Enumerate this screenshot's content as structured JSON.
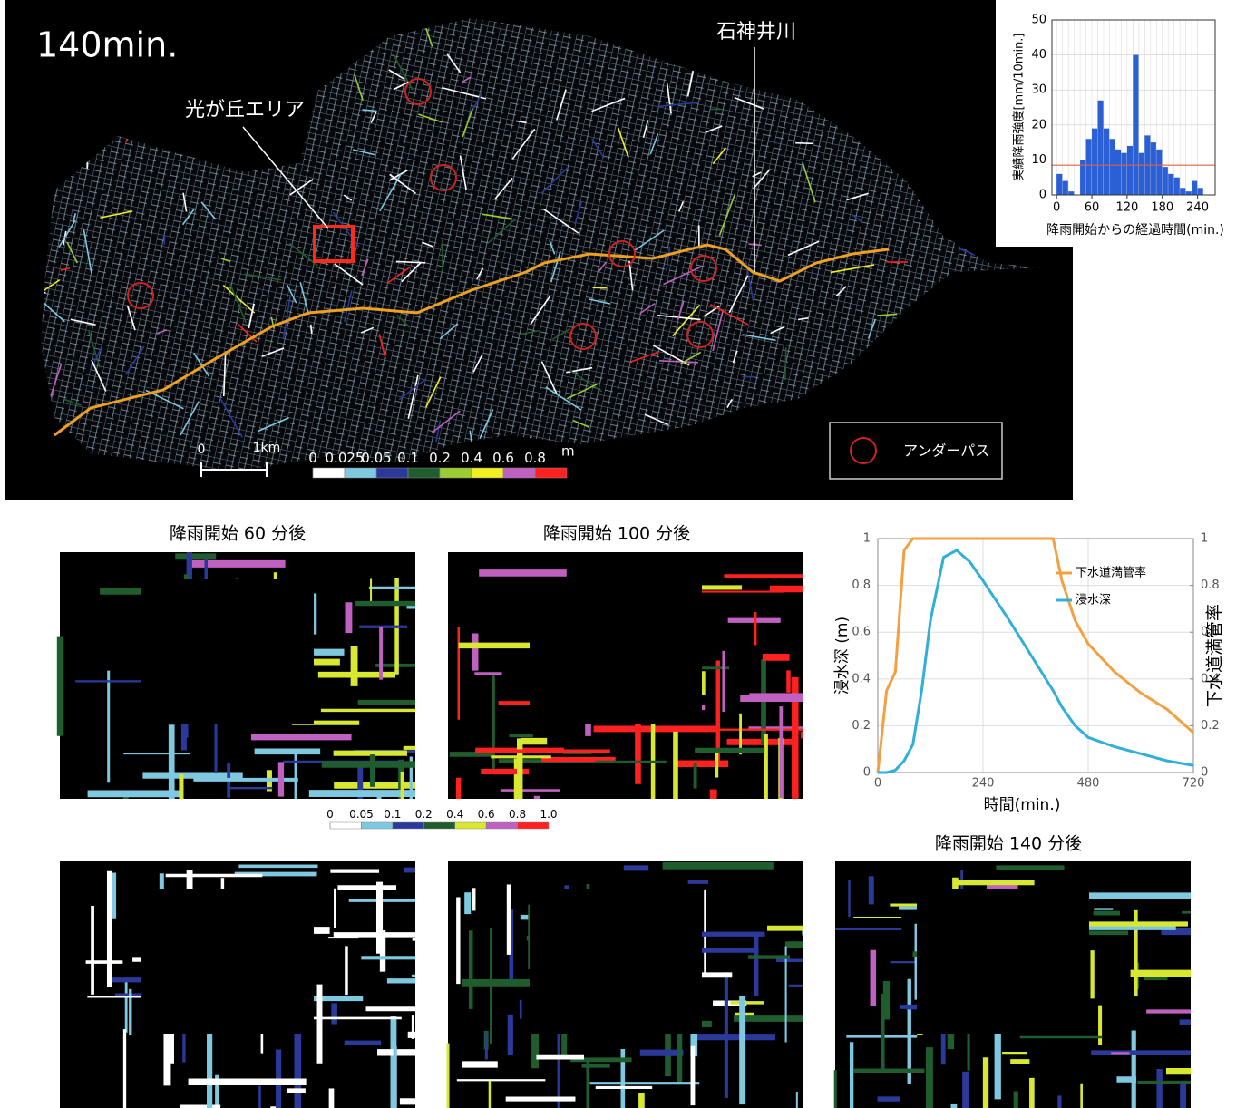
{
  "map": {
    "time_label": "140min.",
    "river_label": "石神井川",
    "area_label": "光が丘エリア",
    "scale": {
      "zero": "0",
      "length": "1km"
    },
    "legend": "アンダーパス"
  },
  "panels": {
    "titles": [
      "降雨開始 60 分後",
      "降雨開始 100 分後",
      "降雨開始 140 分後"
    ]
  },
  "chart_data": [
    {
      "type": "colorbar",
      "unit": "m",
      "ticks": [
        0,
        0.025,
        0.05,
        0.1,
        0.2,
        0.4,
        0.6,
        0.8
      ],
      "colors": [
        "#ffffff",
        "#7ec8e0",
        "#2b3a9a",
        "#1f5c2e",
        "#9acd32",
        "#f0f020",
        "#c060c0",
        "#ff2020"
      ]
    },
    {
      "type": "bar",
      "ylabel": "実績降雨強度[mm/10min.]",
      "xlabel": "降雨開始からの経過時間(min.)",
      "x": [
        0,
        10,
        20,
        30,
        40,
        50,
        60,
        70,
        80,
        90,
        100,
        110,
        120,
        130,
        140,
        150,
        160,
        170,
        180,
        190,
        200,
        210,
        220,
        230,
        240
      ],
      "values": [
        6,
        4,
        1,
        0,
        10,
        16,
        19,
        27,
        19,
        16,
        13,
        12,
        14,
        40,
        12,
        17,
        15,
        13,
        8,
        6,
        5,
        2,
        1,
        4,
        2
      ],
      "color": "#2a5fd6",
      "xlim": [
        -8,
        270
      ],
      "ylim": [
        0,
        50
      ],
      "xticks": [
        0,
        60,
        120,
        180,
        240
      ],
      "yticks": [
        0,
        10,
        20,
        30,
        40,
        50
      ],
      "reference_line": 8.5,
      "reference_color": "#e06040",
      "grid": true
    },
    {
      "type": "colorbar",
      "ticks": [
        0,
        0.05,
        0.1,
        0.2,
        0.4,
        0.6,
        0.8,
        {
          "value": 1,
          "label": "1.0"
        }
      ],
      "colors": [
        "#ffffff",
        "#7ec8e0",
        "#2b3a9a",
        "#1f5c2e",
        "#d8e830",
        "#c060c0",
        "#ff2020"
      ]
    },
    {
      "type": "line",
      "xlabel": "時間(min.)",
      "ylabel": "浸水深 (m)",
      "y2label": "下水道満管率",
      "x": [
        0,
        20,
        40,
        60,
        80,
        100,
        120,
        150,
        180,
        210,
        240,
        300,
        360,
        400,
        420,
        450,
        480,
        540,
        600,
        660,
        720
      ],
      "series": [
        {
          "name": "下水道満管率",
          "color": "#f5a040",
          "axis": "y2",
          "values": [
            0,
            0.35,
            0.43,
            0.95,
            1,
            1,
            1,
            1,
            1,
            1,
            1,
            1,
            1,
            1,
            0.82,
            0.65,
            0.55,
            0.43,
            0.34,
            0.27,
            0.17
          ]
        },
        {
          "name": "浸水深",
          "color": "#30b0d8",
          "values": [
            0,
            0,
            0.01,
            0.05,
            0.12,
            0.35,
            0.65,
            0.92,
            0.95,
            0.9,
            0.82,
            0.65,
            0.47,
            0.35,
            0.28,
            0.2,
            0.15,
            0.11,
            0.08,
            0.05,
            0.03
          ]
        }
      ],
      "xlim": [
        0,
        720
      ],
      "ylim": [
        0,
        1
      ],
      "y2lim": [
        0,
        1
      ],
      "xticks": [
        0,
        240,
        480,
        720
      ],
      "yticks": [
        0,
        0.2,
        0.4,
        0.6,
        0.8,
        1
      ],
      "y2ticks": [
        0,
        0.2,
        0.4,
        0.6,
        0.8,
        1
      ],
      "grid": true
    }
  ]
}
